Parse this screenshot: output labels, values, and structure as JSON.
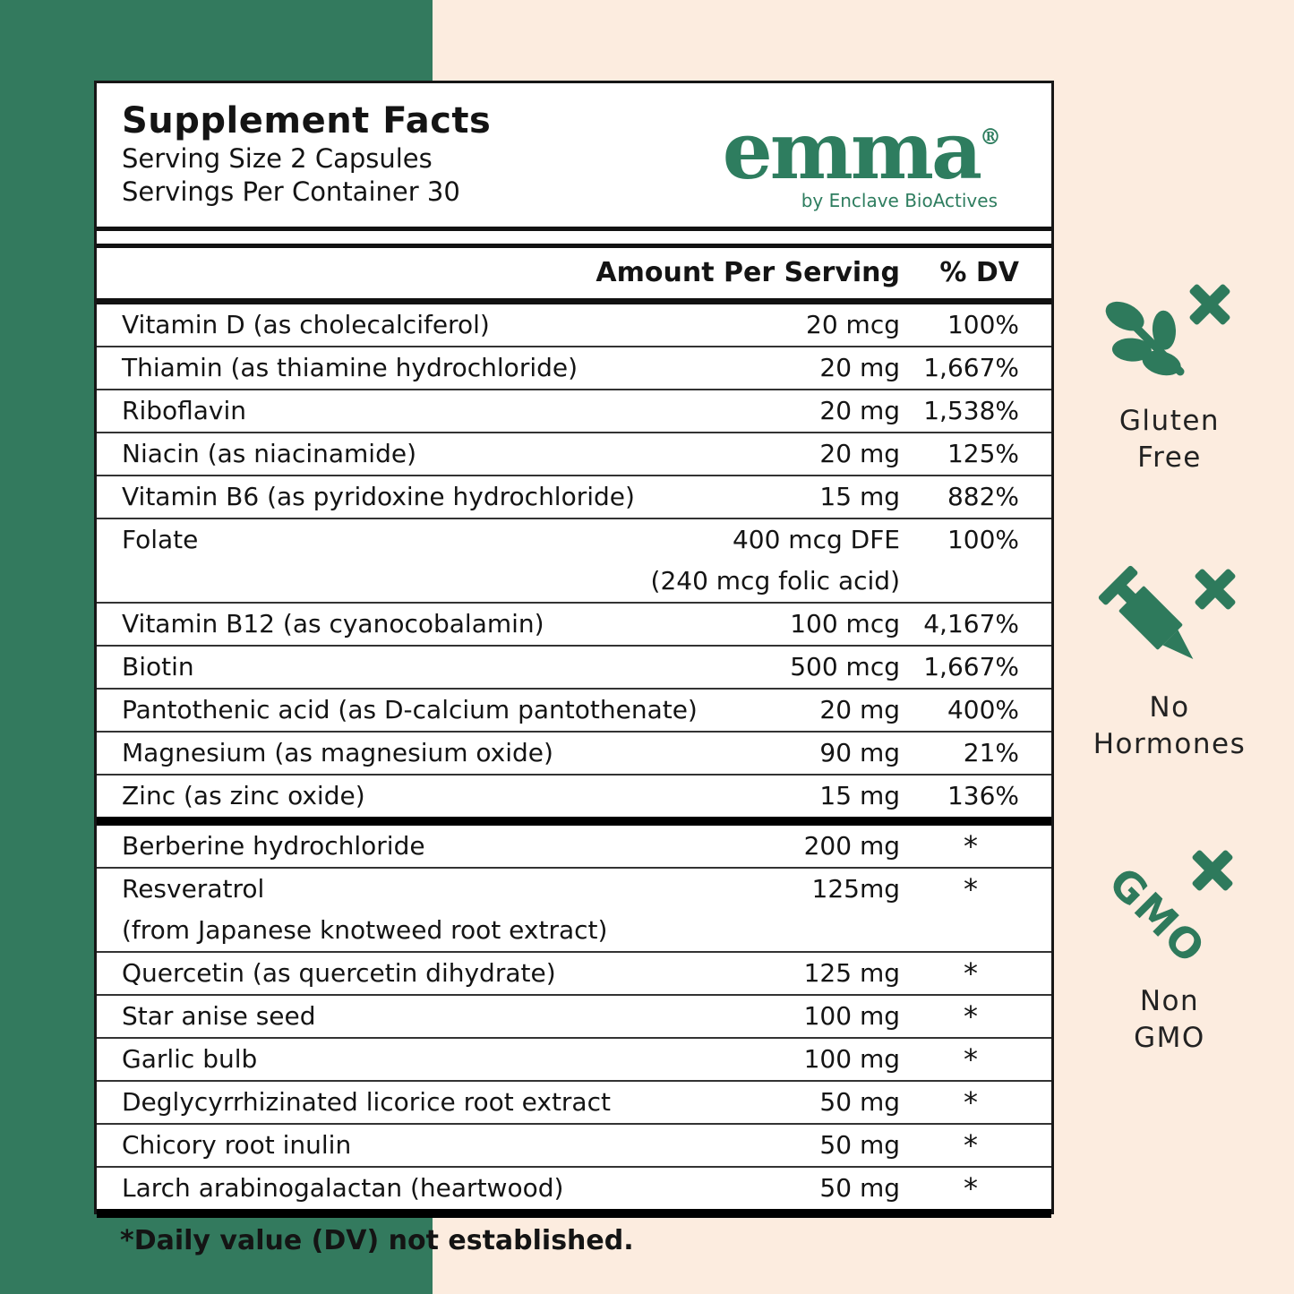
{
  "colors": {
    "background_left_green": "#337a5e",
    "background_right_cream": "#fcecdf",
    "brand_green": "#2e7d5f",
    "icon_green": "#2e7a5c",
    "ink": "#141414"
  },
  "panel": {
    "title": "Supplement Facts",
    "serving_size": "Serving Size 2 Capsules",
    "servings_per_container": "Servings Per Container 30",
    "brand": {
      "name": "emma",
      "mark": "®",
      "byline": "by Enclave BioActives"
    },
    "columns": {
      "amount": "Amount Per Serving",
      "dv": "% DV"
    },
    "vitamins": [
      {
        "name": "Vitamin D (as cholecalciferol)",
        "amount": "20 mcg",
        "dv": "100%"
      },
      {
        "name": "Thiamin (as thiamine hydrochloride)",
        "amount": "20 mg",
        "dv": "1,667%"
      },
      {
        "name": "Riboflavin",
        "amount": "20 mg",
        "dv": "1,538%"
      },
      {
        "name": "Niacin (as niacinamide)",
        "amount": "20 mg",
        "dv": "125%"
      },
      {
        "name": "Vitamin B6 (as pyridoxine hydrochloride)",
        "amount": "15 mg",
        "dv": "882%"
      },
      {
        "name": "Folate",
        "amount": "400 mcg DFE",
        "amount_sub": "(240 mcg folic acid)",
        "dv": "100%"
      },
      {
        "name": "Vitamin B12 (as cyanocobalamin)",
        "amount": "100 mcg",
        "dv": "4,167%"
      },
      {
        "name": "Biotin",
        "amount": "500 mcg",
        "dv": "1,667%"
      },
      {
        "name": "Pantothenic acid (as D-calcium pantothenate)",
        "amount": "20 mg",
        "dv": "400%"
      },
      {
        "name": "Magnesium (as magnesium oxide)",
        "amount": "90 mg",
        "dv": "21%"
      },
      {
        "name": "Zinc (as zinc oxide)",
        "amount": "15 mg",
        "dv": "136%"
      }
    ],
    "botanicals": [
      {
        "name": "Berberine hydrochloride",
        "amount": "200 mg",
        "dv": "*"
      },
      {
        "name": "Resveratrol",
        "name_sub": "(from Japanese knotweed root extract)",
        "amount": "125mg",
        "dv": "*"
      },
      {
        "name": "Quercetin (as quercetin dihydrate)",
        "amount": "125 mg",
        "dv": "*"
      },
      {
        "name": "Star anise seed",
        "amount": "100 mg",
        "dv": "*"
      },
      {
        "name": "Garlic bulb",
        "amount": "100 mg",
        "dv": "*"
      },
      {
        "name": "Deglycyrrhizinated licorice root extract",
        "amount": "50 mg",
        "dv": "*"
      },
      {
        "name": "Chicory root inulin",
        "amount": "50 mg",
        "dv": "*"
      },
      {
        "name": "Larch arabinogalactan (heartwood)",
        "amount": "50 mg",
        "dv": "*"
      }
    ],
    "footnote": "*Daily value (DV) not established."
  },
  "badges": [
    {
      "icon": "gluten-free-icon",
      "line1": "Gluten",
      "line2": "Free"
    },
    {
      "icon": "no-hormones-icon",
      "line1": "No",
      "line2": "Hormones"
    },
    {
      "icon": "non-gmo-icon",
      "icon_text": "GMO",
      "line1": "Non",
      "line2": "GMO"
    }
  ]
}
